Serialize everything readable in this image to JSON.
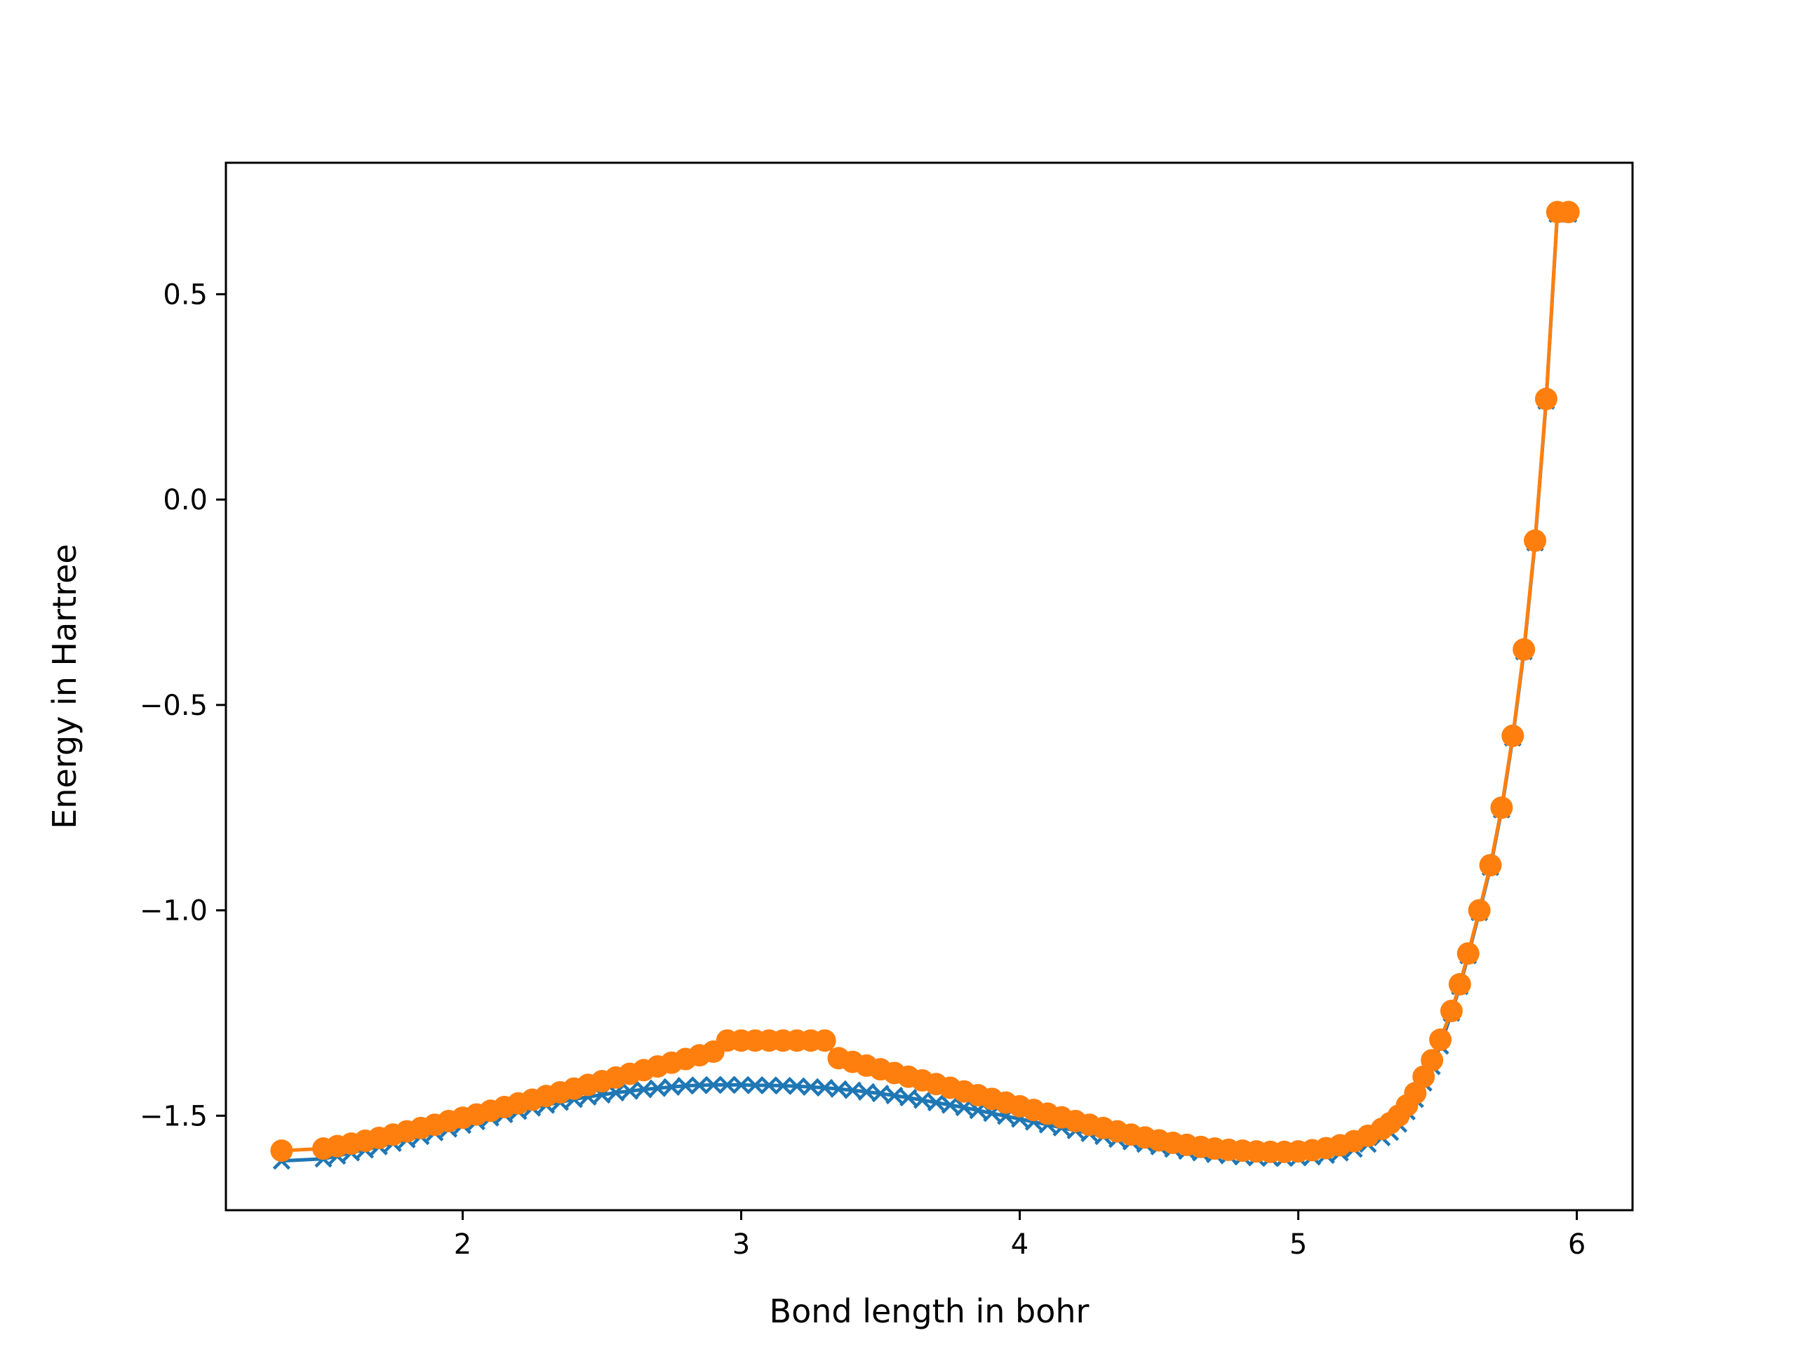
{
  "chart_data": {
    "type": "line",
    "title": "",
    "xlabel": "Bond length in bohr",
    "ylabel": "Energy in Hartree",
    "xlim": [
      1.15,
      6.2
    ],
    "ylim": [
      -1.73,
      0.82
    ],
    "xticks": [
      2,
      3,
      4,
      5,
      6
    ],
    "xtick_labels": [
      "2",
      "3",
      "4",
      "5",
      "6"
    ],
    "yticks": [
      -1.5,
      -1.0,
      -0.5,
      0.0,
      0.5
    ],
    "ytick_labels": [
      "−1.5",
      "−1.0",
      "−0.5",
      "0.0",
      "0.5"
    ],
    "grid": false,
    "legend": "none",
    "series": [
      {
        "marker": "x",
        "color": "#1f77b4",
        "x": [
          1.35,
          1.5,
          1.55,
          1.6,
          1.65,
          1.7,
          1.75,
          1.8,
          1.85,
          1.9,
          1.95,
          2.0,
          2.05,
          2.1,
          2.15,
          2.2,
          2.25,
          2.3,
          2.35,
          2.4,
          2.45,
          2.5,
          2.55,
          2.6,
          2.65,
          2.7,
          2.75,
          2.8,
          2.85,
          2.9,
          2.95,
          3.0,
          3.05,
          3.1,
          3.15,
          3.2,
          3.25,
          3.3,
          3.35,
          3.4,
          3.45,
          3.5,
          3.55,
          3.6,
          3.65,
          3.7,
          3.75,
          3.8,
          3.85,
          3.9,
          3.95,
          4.0,
          4.05,
          4.1,
          4.15,
          4.2,
          4.25,
          4.3,
          4.35,
          4.4,
          4.45,
          4.5,
          4.55,
          4.6,
          4.65,
          4.7,
          4.75,
          4.8,
          4.85,
          4.9,
          4.95,
          5.0,
          5.05,
          5.1,
          5.15,
          5.2,
          5.25,
          5.3,
          5.33,
          5.36,
          5.39,
          5.42,
          5.45,
          5.48,
          5.51,
          5.55,
          5.58,
          5.61,
          5.65,
          5.69,
          5.73,
          5.77,
          5.81,
          5.85,
          5.89,
          5.93,
          5.97
        ],
        "y": [
          -1.61,
          -1.605,
          -1.598,
          -1.59,
          -1.583,
          -1.575,
          -1.567,
          -1.558,
          -1.55,
          -1.541,
          -1.532,
          -1.523,
          -1.514,
          -1.505,
          -1.497,
          -1.489,
          -1.481,
          -1.474,
          -1.467,
          -1.46,
          -1.454,
          -1.449,
          -1.444,
          -1.44,
          -1.436,
          -1.433,
          -1.43,
          -1.427,
          -1.426,
          -1.425,
          -1.425,
          -1.425,
          -1.426,
          -1.426,
          -1.427,
          -1.428,
          -1.43,
          -1.432,
          -1.435,
          -1.438,
          -1.442,
          -1.446,
          -1.451,
          -1.456,
          -1.462,
          -1.468,
          -1.474,
          -1.48,
          -1.487,
          -1.494,
          -1.501,
          -1.508,
          -1.515,
          -1.522,
          -1.529,
          -1.536,
          -1.543,
          -1.55,
          -1.557,
          -1.563,
          -1.569,
          -1.575,
          -1.581,
          -1.586,
          -1.59,
          -1.594,
          -1.597,
          -1.6,
          -1.602,
          -1.603,
          -1.603,
          -1.602,
          -1.6,
          -1.596,
          -1.59,
          -1.581,
          -1.569,
          -1.553,
          -1.54,
          -1.52,
          -1.49,
          -1.46,
          -1.42,
          -1.38,
          -1.33,
          -1.25,
          -1.185,
          -1.11,
          -1.005,
          -0.895,
          -0.755,
          -0.58,
          -0.37,
          -0.105,
          0.24,
          0.695,
          0.695
        ],
        "note_drop_last_duplicate": ""
      },
      {
        "marker": "o",
        "color": "#ff7f0e",
        "x": [
          1.35,
          1.5,
          1.55,
          1.6,
          1.65,
          1.7,
          1.75,
          1.8,
          1.85,
          1.9,
          1.95,
          2.0,
          2.05,
          2.1,
          2.15,
          2.2,
          2.25,
          2.3,
          2.35,
          2.4,
          2.45,
          2.5,
          2.55,
          2.6,
          2.65,
          2.7,
          2.75,
          2.8,
          2.85,
          2.9,
          2.95,
          3.0,
          3.05,
          3.1,
          3.15,
          3.2,
          3.25,
          3.3,
          3.35,
          3.4,
          3.45,
          3.5,
          3.55,
          3.6,
          3.65,
          3.7,
          3.75,
          3.8,
          3.85,
          3.9,
          3.95,
          4.0,
          4.05,
          4.1,
          4.15,
          4.2,
          4.25,
          4.3,
          4.35,
          4.4,
          4.45,
          4.5,
          4.55,
          4.6,
          4.65,
          4.7,
          4.75,
          4.8,
          4.85,
          4.9,
          4.95,
          5.0,
          5.05,
          5.1,
          5.15,
          5.2,
          5.25,
          5.3,
          5.33,
          5.36,
          5.39,
          5.42,
          5.45,
          5.48,
          5.51,
          5.55,
          5.58,
          5.61,
          5.65,
          5.69,
          5.73,
          5.77,
          5.81,
          5.85,
          5.89,
          5.93,
          5.97
        ],
        "y": [
          -1.585,
          -1.58,
          -1.574,
          -1.568,
          -1.561,
          -1.554,
          -1.546,
          -1.538,
          -1.53,
          -1.522,
          -1.513,
          -1.505,
          -1.497,
          -1.488,
          -1.479,
          -1.47,
          -1.461,
          -1.452,
          -1.443,
          -1.434,
          -1.425,
          -1.416,
          -1.407,
          -1.398,
          -1.389,
          -1.38,
          -1.371,
          -1.362,
          -1.353,
          -1.344,
          -1.317,
          -1.317,
          -1.317,
          -1.317,
          -1.317,
          -1.317,
          -1.317,
          -1.317,
          -1.36,
          -1.369,
          -1.378,
          -1.387,
          -1.396,
          -1.405,
          -1.414,
          -1.423,
          -1.432,
          -1.441,
          -1.45,
          -1.459,
          -1.468,
          -1.477,
          -1.486,
          -1.495,
          -1.504,
          -1.513,
          -1.522,
          -1.53,
          -1.538,
          -1.546,
          -1.553,
          -1.56,
          -1.566,
          -1.571,
          -1.576,
          -1.58,
          -1.583,
          -1.585,
          -1.587,
          -1.588,
          -1.588,
          -1.587,
          -1.584,
          -1.579,
          -1.572,
          -1.562,
          -1.549,
          -1.532,
          -1.518,
          -1.5,
          -1.475,
          -1.445,
          -1.405,
          -1.365,
          -1.315,
          -1.245,
          -1.18,
          -1.105,
          -1.0,
          -0.89,
          -0.75,
          -0.575,
          -0.365,
          -0.1,
          0.245,
          0.7,
          0.7
        ]
      }
    ]
  }
}
